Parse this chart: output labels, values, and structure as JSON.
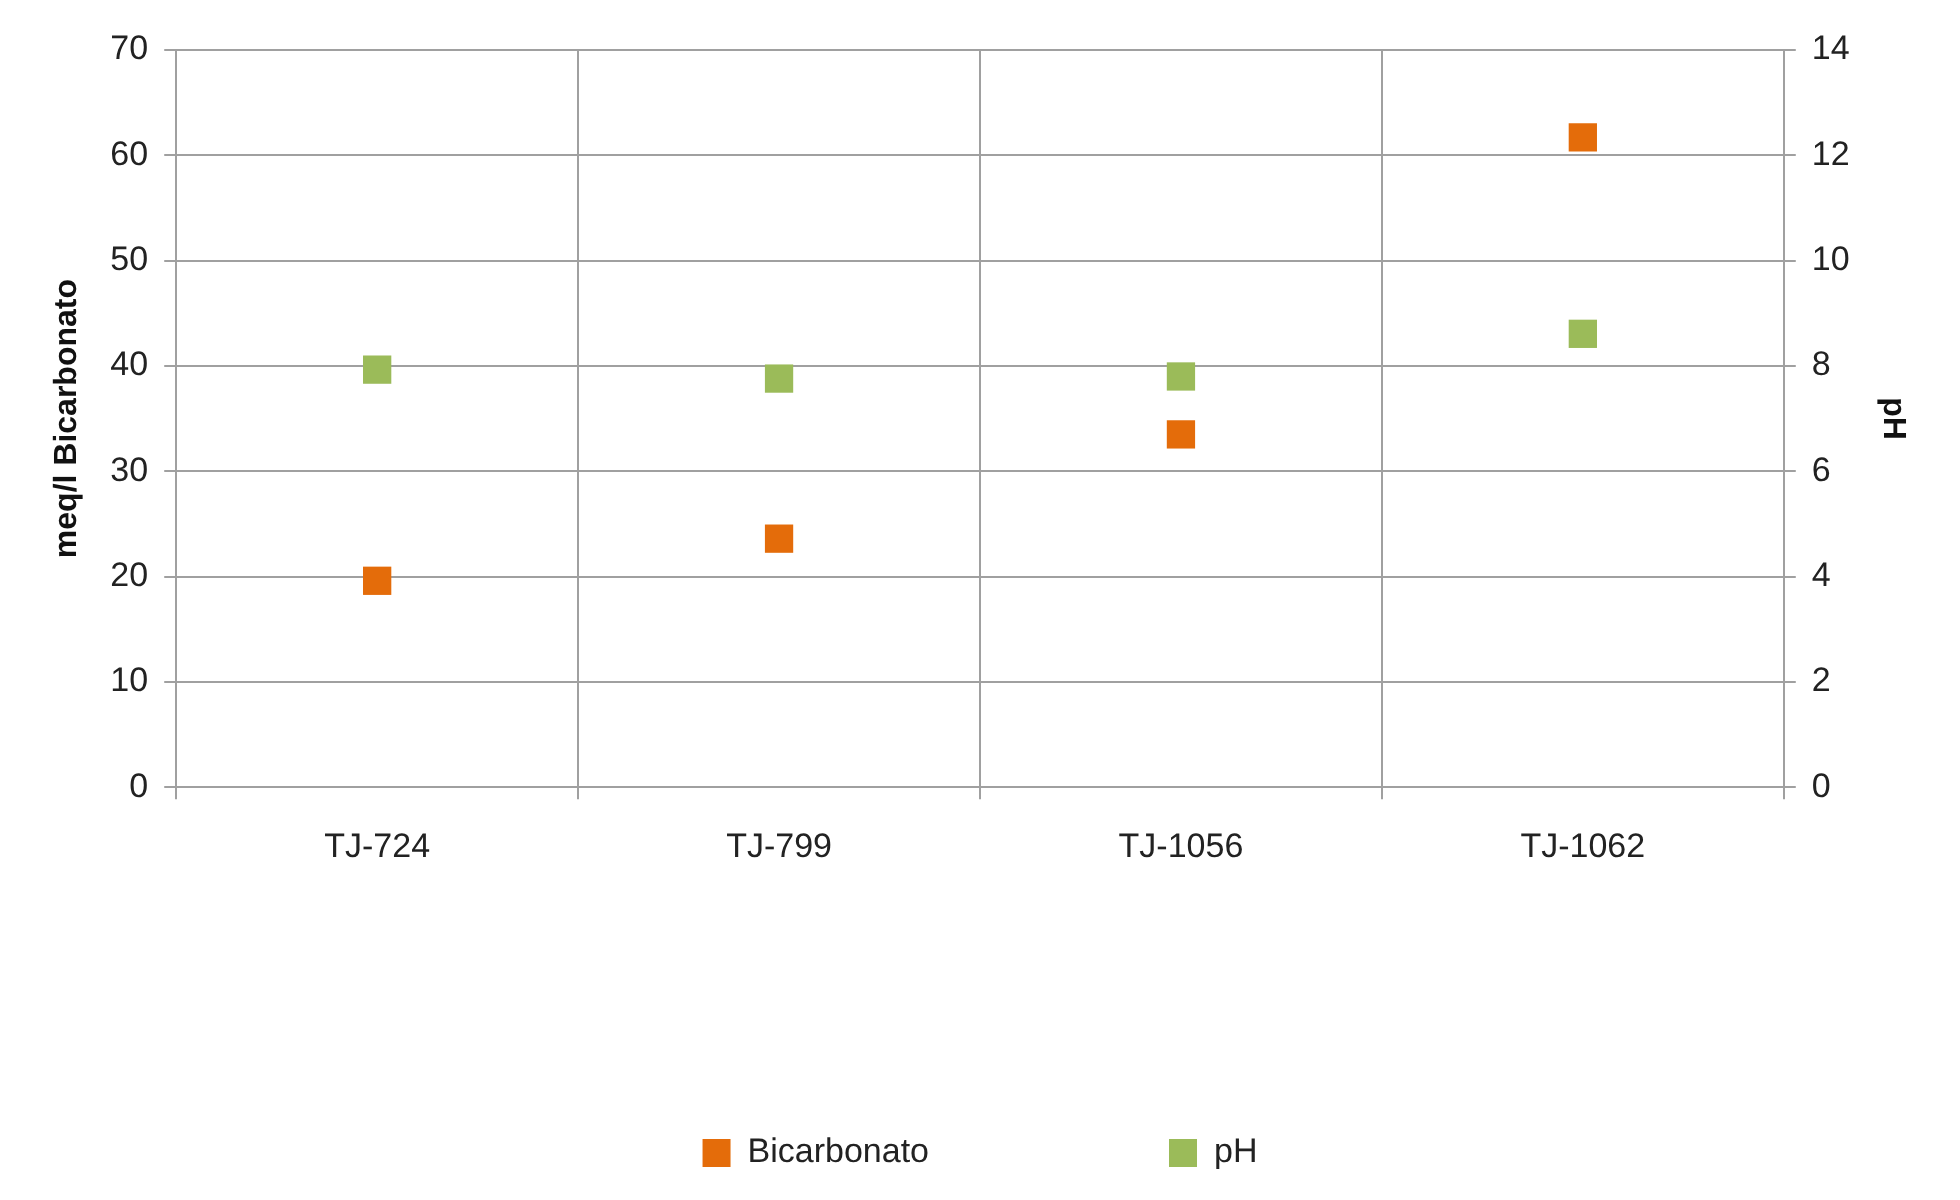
{
  "chart_data": {
    "type": "scatter",
    "categories": [
      "TJ-724",
      "TJ-799",
      "TJ-1056",
      "TJ-1062"
    ],
    "series": [
      {
        "name": "Bicarbonato",
        "color": "#e46c0a",
        "values": [
          19.6,
          23.6,
          33.5,
          61.7
        ]
      },
      {
        "name": "pH",
        "color": "#9bbb59",
        "values": [
          7.93,
          7.76,
          7.8,
          8.61
        ],
        "axis": "y2"
      }
    ],
    "ylabel": "meq/l Bicarbonato",
    "y2label": "pH",
    "ylim": [
      0,
      70
    ],
    "yticks": [
      0,
      10,
      20,
      30,
      40,
      50,
      60,
      70
    ],
    "y2lim": [
      0,
      14
    ],
    "y2ticks": [
      0,
      2,
      4,
      6,
      8,
      10,
      12,
      14
    ],
    "grid": true,
    "legend": "bottom",
    "marker": "square"
  }
}
